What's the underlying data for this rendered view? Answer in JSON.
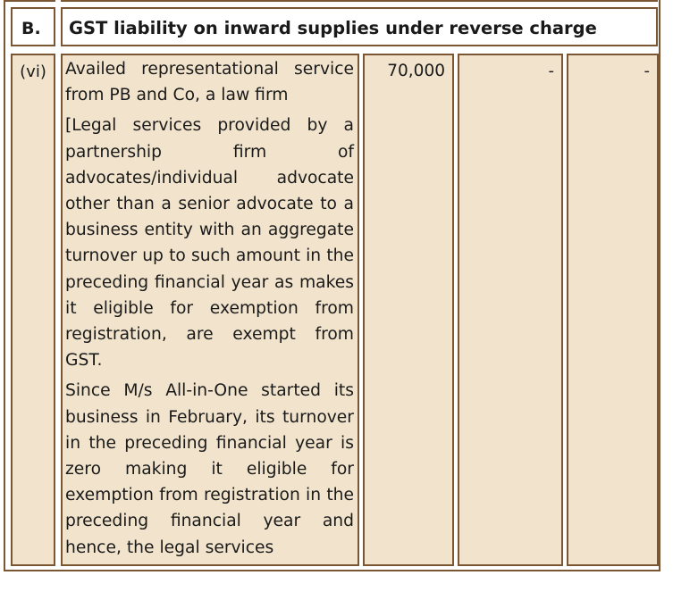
{
  "section": {
    "label": "B.",
    "title": "GST liability on inward supplies under reverse charge"
  },
  "row": {
    "number": "(vi)",
    "paragraphs": [
      "Availed representational service from PB and Co, a law firm",
      "[Legal services provided by a partnership firm of advocates/individual advocate other than a senior advocate to a business entity with an aggregate turnover up to such amount in the preceding financial year as makes it eligible for exemption from registration, are exempt from GST.",
      "Since M/s All-in-One started its business in February, its turnover in the preceding financial year is zero making it eligible for exemption from registration in the preceding financial year and hence, the legal services"
    ],
    "amount": "70,000",
    "col3": "-",
    "col4": "-"
  },
  "colors": {
    "border": "#7a5633",
    "cell_fill": "#f2e4cc",
    "header_fill": "#ffffff"
  }
}
